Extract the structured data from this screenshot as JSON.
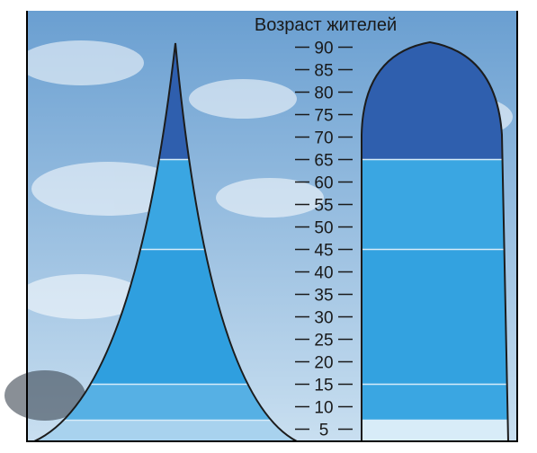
{
  "axis": {
    "title": "Возраст жителей",
    "ticks": [
      90,
      85,
      80,
      75,
      70,
      65,
      60,
      55,
      50,
      45,
      40,
      35,
      30,
      25,
      20,
      15,
      10,
      5
    ]
  },
  "pyramids": {
    "left": {
      "bands": [
        {
          "from": 0,
          "to": 7,
          "color": "#a8d2ee"
        },
        {
          "from": 7,
          "to": 15,
          "color": "#56b0e4"
        },
        {
          "from": 15,
          "to": 45,
          "color": "#2f9fdf"
        },
        {
          "from": 45,
          "to": 65,
          "color": "#3aa6e2"
        },
        {
          "from": 65,
          "to": 90,
          "color": "#2f5fae"
        }
      ]
    },
    "right": {
      "bands": [
        {
          "from": 0,
          "to": 7,
          "color": "#d8ecf8"
        },
        {
          "from": 7,
          "to": 15,
          "color": "#3aa6e2"
        },
        {
          "from": 15,
          "to": 45,
          "color": "#33a2e0"
        },
        {
          "from": 45,
          "to": 65,
          "color": "#3aa6e2"
        },
        {
          "from": 65,
          "to": 92,
          "color": "#2f5fae"
        }
      ]
    }
  },
  "colors": {
    "sky_top": "#6a9fd1",
    "sky_bottom": "#c9dff0",
    "outline": "#1c1c1c",
    "divider": "#d7ecf9"
  }
}
